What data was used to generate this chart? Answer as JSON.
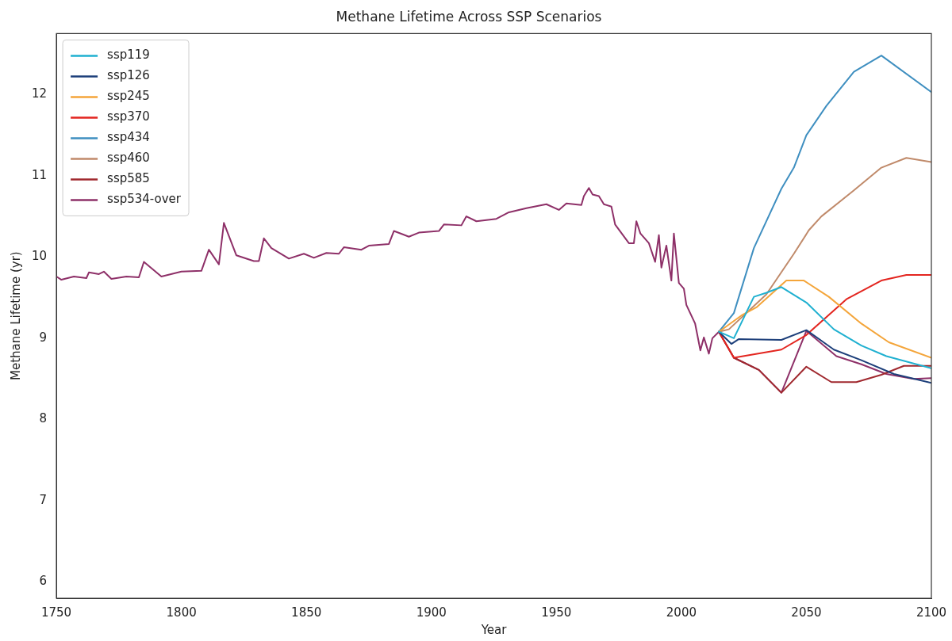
{
  "chart_data": {
    "type": "line",
    "title": "Methane Lifetime Across SSP Scenarios",
    "xlabel": "Year",
    "ylabel": "Methane Lifetime (yr)",
    "xlim": [
      1750,
      2100
    ],
    "xticks": [
      1750,
      1800,
      1850,
      1900,
      1950,
      2000,
      2050,
      2100
    ],
    "ylim": [
      5.8,
      12.75
    ],
    "yticks": [
      6,
      7,
      8,
      9,
      10,
      11,
      12
    ],
    "grid": false,
    "legend": "top left",
    "marker": "none",
    "line_style": "solid",
    "series": [
      {
        "name": "ssp119",
        "color": "#1fb0d0",
        "x": [
          2015,
          2021,
          2029,
          2034,
          2040,
          2050,
          2061,
          2072,
          2082,
          2100
        ],
        "values": [
          9.08,
          9.0,
          9.51,
          9.56,
          9.63,
          9.44,
          9.11,
          8.91,
          8.78,
          8.63
        ]
      },
      {
        "name": "ssp126",
        "color": "#1d3f7a",
        "x": [
          2015,
          2020,
          2023,
          2040,
          2050,
          2061,
          2072,
          2085,
          2100
        ],
        "values": [
          9.08,
          8.93,
          8.99,
          8.98,
          9.1,
          8.86,
          8.73,
          8.56,
          8.45
        ]
      },
      {
        "name": "ssp245",
        "color": "#f4a53a",
        "x": [
          2015,
          2024,
          2030,
          2042,
          2049,
          2059,
          2072,
          2083,
          2100
        ],
        "values": [
          9.08,
          9.28,
          9.38,
          9.71,
          9.71,
          9.51,
          9.18,
          8.95,
          8.76
        ]
      },
      {
        "name": "ssp370",
        "color": "#e3251f",
        "x": [
          2015,
          2021,
          2040,
          2050,
          2066,
          2080,
          2090,
          2100
        ],
        "values": [
          9.08,
          8.76,
          8.86,
          9.04,
          9.48,
          9.71,
          9.78,
          9.78
        ]
      },
      {
        "name": "ssp434",
        "color": "#3f8fc0",
        "x": [
          2015,
          2021,
          2029,
          2040,
          2045,
          2050,
          2058,
          2069,
          2080,
          2100
        ],
        "values": [
          9.08,
          9.31,
          10.11,
          10.84,
          11.1,
          11.5,
          11.86,
          12.28,
          12.48,
          12.03
        ]
      },
      {
        "name": "ssp460",
        "color": "#c08a6a",
        "x": [
          2015,
          2019,
          2034,
          2045,
          2051,
          2056,
          2069,
          2080,
          2090,
          2100
        ],
        "values": [
          9.08,
          9.11,
          9.54,
          10.04,
          10.33,
          10.5,
          10.82,
          11.1,
          11.22,
          11.17
        ]
      },
      {
        "name": "ssp585",
        "color": "#a0282e",
        "x": [
          2015,
          2021,
          2031,
          2040,
          2050,
          2060,
          2070,
          2080,
          2089,
          2100
        ],
        "values": [
          9.08,
          8.76,
          8.61,
          8.33,
          8.65,
          8.46,
          8.46,
          8.55,
          8.66,
          8.66
        ]
      },
      {
        "name": "ssp534-over",
        "color": "#8e3068",
        "x": [
          1750,
          1752,
          1757,
          1762,
          1763,
          1767,
          1769,
          1772,
          1778,
          1783,
          1785,
          1792,
          1800,
          1808,
          1811,
          1815,
          1817,
          1822,
          1829,
          1831,
          1833,
          1836,
          1843,
          1849,
          1853,
          1858,
          1863,
          1865,
          1872,
          1875,
          1883,
          1885,
          1891,
          1895,
          1903,
          1905,
          1912,
          1914,
          1918,
          1926,
          1931,
          1938,
          1946,
          1951,
          1954,
          1960,
          1961,
          1963,
          1964.5,
          1967,
          1969,
          1972,
          1973.5,
          1979,
          1981,
          1982,
          1983.6,
          1987,
          1989.5,
          1991,
          1992,
          1994,
          1996,
          1997,
          1999,
          2001,
          2002,
          2005.5,
          2007.6,
          2009,
          2011,
          2012.4,
          2015,
          2021,
          2031,
          2040,
          2050,
          2062,
          2072,
          2082,
          2093,
          2100
        ],
        "values": [
          9.76,
          9.72,
          9.76,
          9.74,
          9.81,
          9.79,
          9.82,
          9.73,
          9.76,
          9.75,
          9.94,
          9.76,
          9.82,
          9.83,
          10.09,
          9.91,
          10.42,
          10.02,
          9.95,
          9.95,
          10.23,
          10.11,
          9.98,
          10.04,
          9.99,
          10.05,
          10.04,
          10.12,
          10.09,
          10.14,
          10.16,
          10.32,
          10.25,
          10.3,
          10.32,
          10.4,
          10.39,
          10.5,
          10.44,
          10.47,
          10.55,
          10.6,
          10.65,
          10.58,
          10.66,
          10.64,
          10.75,
          10.85,
          10.77,
          10.75,
          10.65,
          10.62,
          10.4,
          10.17,
          10.17,
          10.44,
          10.29,
          10.17,
          9.94,
          10.27,
          9.87,
          10.14,
          9.71,
          10.29,
          9.68,
          9.61,
          9.41,
          9.18,
          8.85,
          9.01,
          8.81,
          9.0,
          9.08,
          8.76,
          8.61,
          8.33,
          9.09,
          8.78,
          8.68,
          8.56,
          8.5,
          8.51
        ]
      }
    ]
  }
}
